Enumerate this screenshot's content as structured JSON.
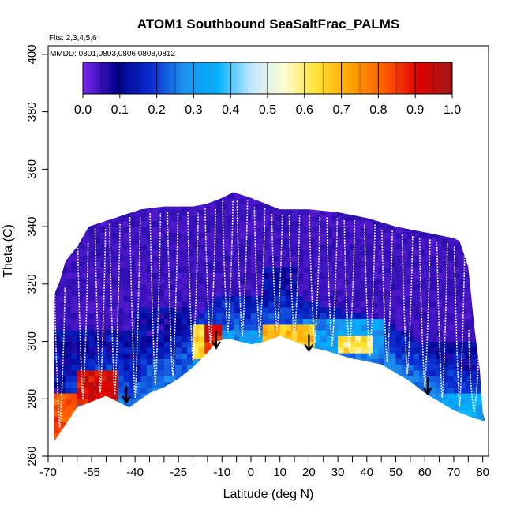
{
  "chart_data": {
    "type": "heatmap",
    "title": "ATOM1 Southbound SeaSaltFrac_PALMS",
    "flights_note": "Flts: 2,3,4,5,6",
    "dates_note": "MMDD: 0801,0803,0806,0808,0812",
    "xlabel": "Latitude (deg N)",
    "ylabel": "Theta (C)",
    "xlim": [
      -70,
      82
    ],
    "ylim": [
      260,
      403
    ],
    "x_ticks": [
      -70,
      -55,
      -40,
      -25,
      -10,
      0,
      10,
      20,
      30,
      40,
      50,
      60,
      70,
      80
    ],
    "x_tick_labels": [
      "-70",
      "-55",
      "-40",
      "-25",
      "-10",
      "0",
      "10",
      "20",
      "30",
      "40",
      "50",
      "60",
      "70",
      "80"
    ],
    "x_minor_ticks": [
      -65,
      -60,
      -50,
      -45,
      -35,
      -30,
      -20,
      -15,
      -5,
      5,
      15,
      25,
      35,
      45,
      55,
      65,
      75
    ],
    "y_ticks": [
      260,
      280,
      300,
      320,
      340,
      360,
      380,
      400
    ],
    "y_tick_labels": [
      "260",
      "280",
      "300",
      "320",
      "340",
      "360",
      "380",
      "400"
    ],
    "colorbar": {
      "range": [
        0,
        1
      ],
      "ticks": [
        0.0,
        0.1,
        0.2,
        0.3,
        0.4,
        0.5,
        0.6,
        0.7,
        0.8,
        0.9,
        1.0
      ],
      "tick_labels": [
        "0.0",
        "0.1",
        "0.2",
        "0.3",
        "0.4",
        "0.5",
        "0.6",
        "0.7",
        "0.8",
        "0.9",
        "1.0"
      ],
      "stops": [
        "#7b26f0",
        "#00008c",
        "#0b2bd0",
        "#1c90ee",
        "#00b2ff",
        "#bfe6ff",
        "#fefed0",
        "#ffe030",
        "#ffa000",
        "#ff5a00",
        "#e00000",
        "#a01818"
      ]
    },
    "upper_boundary": [
      [
        -68,
        316
      ],
      [
        -66,
        321
      ],
      [
        -64,
        328
      ],
      [
        -60,
        333
      ],
      [
        -56,
        340
      ],
      [
        -50,
        342
      ],
      [
        -44,
        344
      ],
      [
        -38,
        346
      ],
      [
        -30,
        347
      ],
      [
        -20,
        347
      ],
      [
        -15,
        348
      ],
      [
        -10,
        350
      ],
      [
        -6,
        352
      ],
      [
        0,
        350
      ],
      [
        5,
        348
      ],
      [
        10,
        346
      ],
      [
        20,
        346
      ],
      [
        30,
        345
      ],
      [
        40,
        343
      ],
      [
        50,
        340
      ],
      [
        60,
        338
      ],
      [
        70,
        336
      ],
      [
        72,
        335
      ],
      [
        75,
        326
      ],
      [
        77,
        306
      ],
      [
        79,
        290
      ],
      [
        80,
        275
      ],
      [
        81,
        272
      ]
    ],
    "lower_boundary": [
      [
        -68,
        265
      ],
      [
        -64,
        271
      ],
      [
        -60,
        277
      ],
      [
        -55,
        279
      ],
      [
        -50,
        281
      ],
      [
        -46,
        279
      ],
      [
        -42,
        277
      ],
      [
        -35,
        282
      ],
      [
        -30,
        284
      ],
      [
        -25,
        287
      ],
      [
        -20,
        291
      ],
      [
        -15,
        296
      ],
      [
        -12,
        300
      ],
      [
        -8,
        301
      ],
      [
        -4,
        300
      ],
      [
        0,
        299
      ],
      [
        5,
        300
      ],
      [
        10,
        302
      ],
      [
        15,
        300
      ],
      [
        20,
        298
      ],
      [
        25,
        297
      ],
      [
        35,
        294
      ],
      [
        45,
        292
      ],
      [
        55,
        286
      ],
      [
        60,
        282
      ],
      [
        65,
        279
      ],
      [
        70,
        276
      ],
      [
        75,
        274
      ],
      [
        81,
        272
      ]
    ],
    "features": [
      {
        "x": [
          -68,
          -40
        ],
        "theta": [
          284,
          304
        ],
        "value": 0.12
      },
      {
        "x": [
          -68,
          -60
        ],
        "theta": [
          266,
          282
        ],
        "value": 0.82
      },
      {
        "x": [
          -60,
          -46
        ],
        "theta": [
          278,
          290
        ],
        "value": 0.92
      },
      {
        "x": [
          -40,
          -20
        ],
        "theta": [
          290,
          312
        ],
        "value": 0.1
      },
      {
        "x": [
          -20,
          -12
        ],
        "theta": [
          294,
          306
        ],
        "value": 0.65
      },
      {
        "x": [
          -15,
          -10
        ],
        "theta": [
          296,
          306
        ],
        "value": 0.9
      },
      {
        "x": [
          -10,
          5
        ],
        "theta": [
          298,
          304
        ],
        "value": 0.3
      },
      {
        "x": [
          5,
          22
        ],
        "theta": [
          299,
          305
        ],
        "value": 0.68
      },
      {
        "x": [
          18,
          45
        ],
        "theta": [
          296,
          308
        ],
        "value": 0.3
      },
      {
        "x": [
          30,
          42
        ],
        "theta": [
          296,
          302
        ],
        "value": 0.62
      },
      {
        "x": [
          45,
          78
        ],
        "theta": [
          276,
          300
        ],
        "value": 0.12
      },
      {
        "x": [
          62,
          80
        ],
        "theta": [
          272,
          282
        ],
        "value": 0.32
      },
      {
        "x": [
          5,
          15
        ],
        "theta": [
          305,
          325
        ],
        "value": 0.1
      }
    ],
    "arrows": [
      {
        "lat": -43,
        "theta": 279
      },
      {
        "lat": -12,
        "theta": 298
      },
      {
        "lat": 20,
        "theta": 297
      },
      {
        "lat": 61,
        "theta": 282
      }
    ]
  }
}
